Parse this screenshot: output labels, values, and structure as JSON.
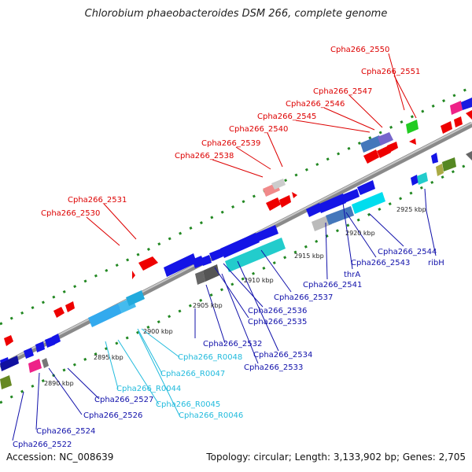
{
  "title": "Chlorobium phaeobacteroides DSM 266, complete genome",
  "footer": {
    "accession": "Accession: NC_008639",
    "topology": "Topology: circular; Length: 3,133,902 bp; Genes: 2,705"
  },
  "colors": {
    "forward_label": "#dd0000",
    "reverse_label": "#1010aa",
    "rna_label": "#22bbdd",
    "backbone": "#888888",
    "dots": "#228822"
  },
  "tick_labels": [
    "2890 kbp",
    "2895 kbp",
    "2900 kbp",
    "2905 kbp",
    "2910 kbp",
    "2915 kbp",
    "2920 kbp",
    "2925 kbp"
  ],
  "forward_labels": [
    "Cpha266_2550",
    "Cpha266_2551",
    "Cpha266_2547",
    "Cpha266_2546",
    "Cpha266_2545",
    "Cpha266_2540",
    "Cpha266_2539",
    "Cpha266_2538",
    "Cpha266_2531",
    "Cpha266_2530"
  ],
  "reverse_labels": [
    "ribH",
    "Cpha266_2544",
    "Cpha266_2543",
    "thrA",
    "Cpha266_2541",
    "Cpha266_2537",
    "Cpha266_2536",
    "Cpha266_2535",
    "Cpha266_2534",
    "Cpha266_2533",
    "Cpha266_2532",
    "Cpha266_2527",
    "Cpha266_2526",
    "Cpha266_2524",
    "Cpha266_2522"
  ],
  "rna_labels": [
    "Cpha266_R0048",
    "Cpha266_R0047",
    "Cpha266_R0044",
    "Cpha266_R0045",
    "Cpha266_R0046"
  ]
}
